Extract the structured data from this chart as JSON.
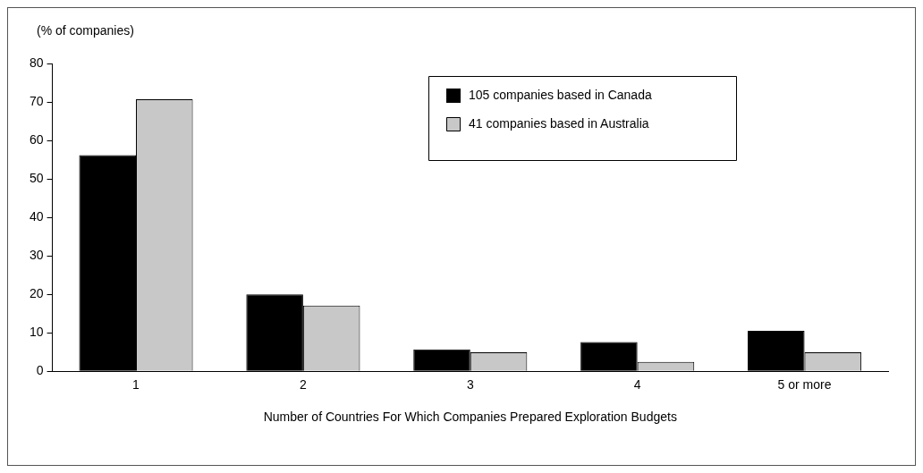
{
  "chart_data": {
    "type": "bar",
    "ylabel": "(% of companies)",
    "xlabel": "Number of Countries For Which Companies Prepared Exploration Budgets",
    "categories": [
      "1",
      "2",
      "3",
      "4",
      "5 or more"
    ],
    "series": [
      {
        "name": "105 companies based in Canada",
        "color": "#000000",
        "values": [
          56.2,
          20.0,
          5.7,
          7.6,
          10.5
        ]
      },
      {
        "name": "41 companies based in Australia",
        "color": "#c8c8c8",
        "values": [
          70.7,
          17.1,
          4.9,
          2.4,
          4.9
        ]
      }
    ],
    "ylim": [
      0,
      80
    ],
    "yticks": [
      0,
      10,
      20,
      30,
      40,
      50,
      60,
      70,
      80
    ],
    "grid": false,
    "legend": "top right"
  }
}
